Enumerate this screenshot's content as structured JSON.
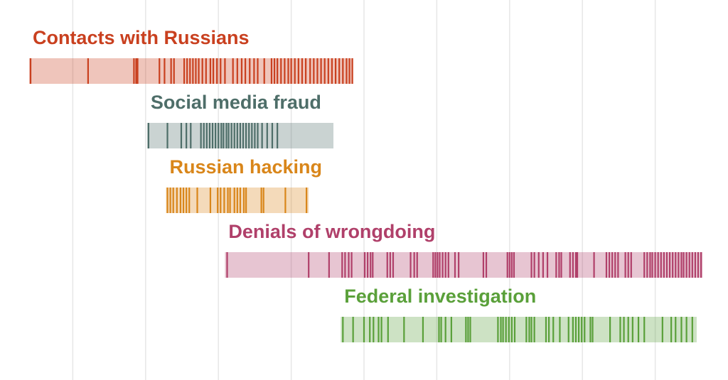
{
  "chart_data": {
    "type": "timeline",
    "xlim": [
      0,
      100
    ],
    "xticks": [
      10,
      20,
      30,
      40,
      50,
      60,
      70,
      80,
      90
    ],
    "grid": true,
    "series": [
      {
        "name": "Contacts with Russians",
        "color": "#c9401f",
        "start": 4.0,
        "end": 48.5,
        "events": [
          4.2,
          12.1,
          18.4,
          18.7,
          18.9,
          21.9,
          22.6,
          23.5,
          23.9,
          25.3,
          25.7,
          26.1,
          26.5,
          26.9,
          27.3,
          27.8,
          28.3,
          28.9,
          29.3,
          29.8,
          30.3,
          30.9,
          32.0,
          32.6,
          33.2,
          33.7,
          34.3,
          34.9,
          35.4,
          36.3,
          37.3,
          37.7,
          38.1,
          38.6,
          39.1,
          39.6,
          40.0,
          40.5,
          41.0,
          41.5,
          42.0,
          42.6,
          43.1,
          43.6,
          44.1,
          44.6,
          45.1,
          45.6,
          46.1,
          46.6,
          47.1,
          47.6,
          48.0,
          48.4
        ]
      },
      {
        "name": "Social media fraud",
        "color": "#4e6e69",
        "start": 20.2,
        "end": 45.8,
        "events": [
          20.4,
          23.0,
          24.9,
          25.6,
          26.2,
          27.6,
          28.0,
          28.4,
          28.8,
          29.2,
          29.6,
          30.0,
          30.4,
          30.7,
          31.1,
          31.4,
          31.8,
          32.2,
          32.6,
          33.0,
          33.4,
          33.8,
          34.2,
          34.6,
          35.0,
          35.4,
          36.0,
          36.7,
          37.4,
          38.1
        ]
      },
      {
        "name": "Russian hacking",
        "color": "#d9861a",
        "start": 22.8,
        "end": 42.4,
        "events": [
          23.0,
          23.4,
          23.8,
          24.3,
          24.8,
          25.2,
          25.6,
          26.0,
          27.1,
          28.9,
          29.9,
          30.3,
          30.8,
          31.3,
          31.6,
          32.2,
          32.6,
          33.0,
          33.5,
          33.8,
          35.9,
          36.2,
          39.2,
          42.1
        ]
      },
      {
        "name": "Denials of wrongdoing",
        "color": "#b0406a",
        "start": 30.9,
        "end": 96.5,
        "events": [
          31.2,
          42.4,
          45.2,
          47.0,
          47.4,
          47.9,
          48.3,
          50.1,
          50.5,
          50.9,
          51.2,
          53.2,
          53.6,
          54.0,
          56.4,
          56.9,
          57.3,
          59.5,
          59.8,
          60.1,
          60.4,
          60.8,
          61.2,
          61.6,
          62.5,
          63.0,
          66.4,
          66.8,
          69.7,
          70.0,
          70.3,
          70.6,
          73.0,
          73.4,
          74.0,
          74.6,
          75.2,
          76.4,
          76.8,
          77.1,
          78.3,
          78.7,
          79.1,
          79.3,
          81.6,
          83.3,
          83.7,
          84.1,
          84.5,
          84.9,
          85.9,
          86.3,
          86.7,
          88.5,
          88.9,
          89.3,
          89.6,
          90.0,
          90.4,
          90.8,
          91.2,
          91.6,
          92.0,
          92.4,
          92.8,
          93.2,
          93.6,
          93.9,
          94.3,
          94.7,
          95.1,
          95.5,
          95.9,
          96.3
        ]
      },
      {
        "name": "Federal investigation",
        "color": "#5aa03a",
        "start": 46.8,
        "end": 95.7,
        "events": [
          47.1,
          48.5,
          50.0,
          50.8,
          51.3,
          52.0,
          52.4,
          53.3,
          55.5,
          58.1,
          60.3,
          60.6,
          61.2,
          62.0,
          64.0,
          64.3,
          64.6,
          68.4,
          68.8,
          69.1,
          69.5,
          69.9,
          70.3,
          70.7,
          72.3,
          72.7,
          73.0,
          73.4,
          75.0,
          75.4,
          76.0,
          76.9,
          78.1,
          78.7,
          79.1,
          79.5,
          79.9,
          80.3,
          81.1,
          81.4,
          83.8,
          85.2,
          85.7,
          86.3,
          86.9,
          87.7,
          88.5,
          91.0,
          92.2,
          92.8,
          93.6,
          94.3,
          95.1
        ]
      }
    ]
  }
}
